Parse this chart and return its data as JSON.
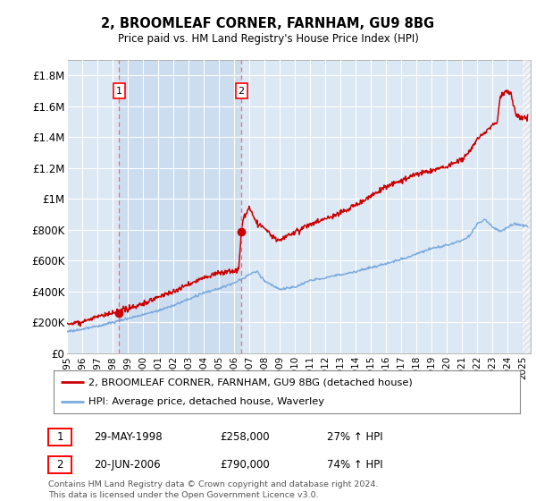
{
  "title": "2, BROOMLEAF CORNER, FARNHAM, GU9 8BG",
  "subtitle": "Price paid vs. HM Land Registry's House Price Index (HPI)",
  "legend_label_red": "2, BROOMLEAF CORNER, FARNHAM, GU9 8BG (detached house)",
  "legend_label_blue": "HPI: Average price, detached house, Waverley",
  "annotation1_label": "1",
  "annotation1_date": "29-MAY-1998",
  "annotation1_price": "£258,000",
  "annotation1_hpi": "27% ↑ HPI",
  "annotation2_label": "2",
  "annotation2_date": "20-JUN-2006",
  "annotation2_price": "£790,000",
  "annotation2_hpi": "74% ↑ HPI",
  "footer": "Contains HM Land Registry data © Crown copyright and database right 2024.\nThis data is licensed under the Open Government Licence v3.0.",
  "ylim": [
    0,
    1900000
  ],
  "yticks": [
    0,
    200000,
    400000,
    600000,
    800000,
    1000000,
    1200000,
    1400000,
    1600000,
    1800000
  ],
  "ytick_labels": [
    "£0",
    "£200K",
    "£400K",
    "£600K",
    "£800K",
    "£1M",
    "£1.2M",
    "£1.4M",
    "£1.6M",
    "£1.8M"
  ],
  "background_color": "#ffffff",
  "plot_bg_color": "#dde8f5",
  "shaded_bg_color": "#ccddf0",
  "grid_color": "#ffffff",
  "red_color": "#cc0000",
  "blue_color": "#7aaadd",
  "vline_color": "#ff6666",
  "vline_x1": 1998.42,
  "vline_x2": 2006.47,
  "dot1_x": 1998.42,
  "dot1_y": 258000,
  "dot2_x": 2006.47,
  "dot2_y": 790000,
  "xmin": 1995.0,
  "xmax": 2025.5
}
